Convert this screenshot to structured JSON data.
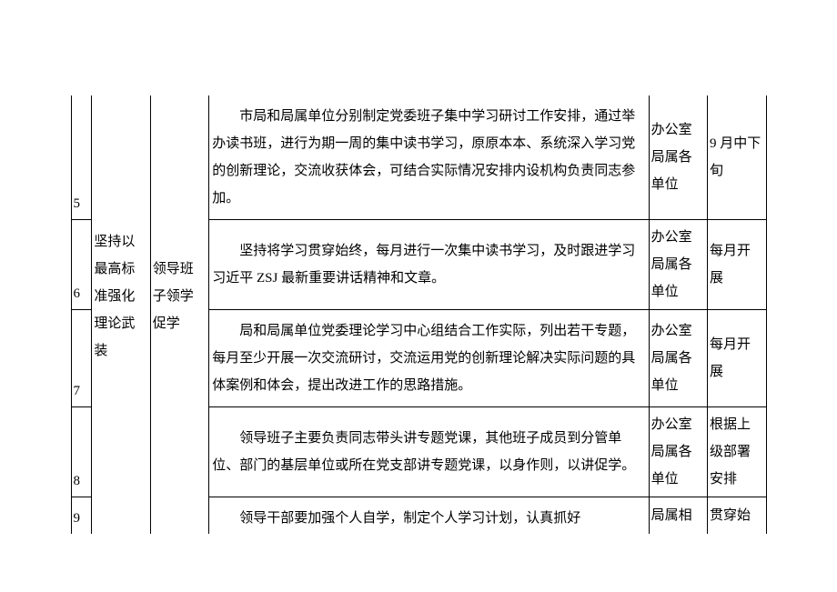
{
  "rows": [
    {
      "idx": "5",
      "content": "市局和局属单位分别制定党委班子集中学习研讨工作安排，通过举办读书班，进行为期一周的集中读书学习，原原本本、系统深入学习党的创新理论，交流收获体会，可结合实际情况安排内设机构负责同志参加。",
      "dept": "办公室局属各单位",
      "time": "9 月中下旬"
    },
    {
      "idx": "6",
      "content": "坚持将学习贯穿始终，每月进行一次集中读书学习，及时跟进学习习近平 ZSJ 最新重要讲话精神和文章。",
      "dept": "办公室局属各单位",
      "time": "每月开展"
    },
    {
      "idx": "7",
      "content": "局和局属单位党委理论学习中心组结合工作实际，列出若干专题，每月至少开展一次交流研讨，交流运用党的创新理论解决实际问题的具体案例和体会，提出改进工作的思路措施。",
      "dept": "办公室局属各单位",
      "time": "每月开展"
    },
    {
      "idx": "8",
      "content": "领导班子主要负责同志带头讲专题党课，其他班子成员到分管单位、部门的基层单位或所在党支部讲专题党课，以身作则，以讲促学。",
      "dept": "办公室局属各单位",
      "time": "根据上级部署安排"
    },
    {
      "idx": "9",
      "content": "领导干部要加强个人自学，制定个人学习计划，认真抓好",
      "dept": "局属相",
      "time": "贯穿始"
    }
  ],
  "merged": {
    "category": "坚持以最高标准强化理论武装",
    "subcategory": "领导班子领学促学"
  }
}
